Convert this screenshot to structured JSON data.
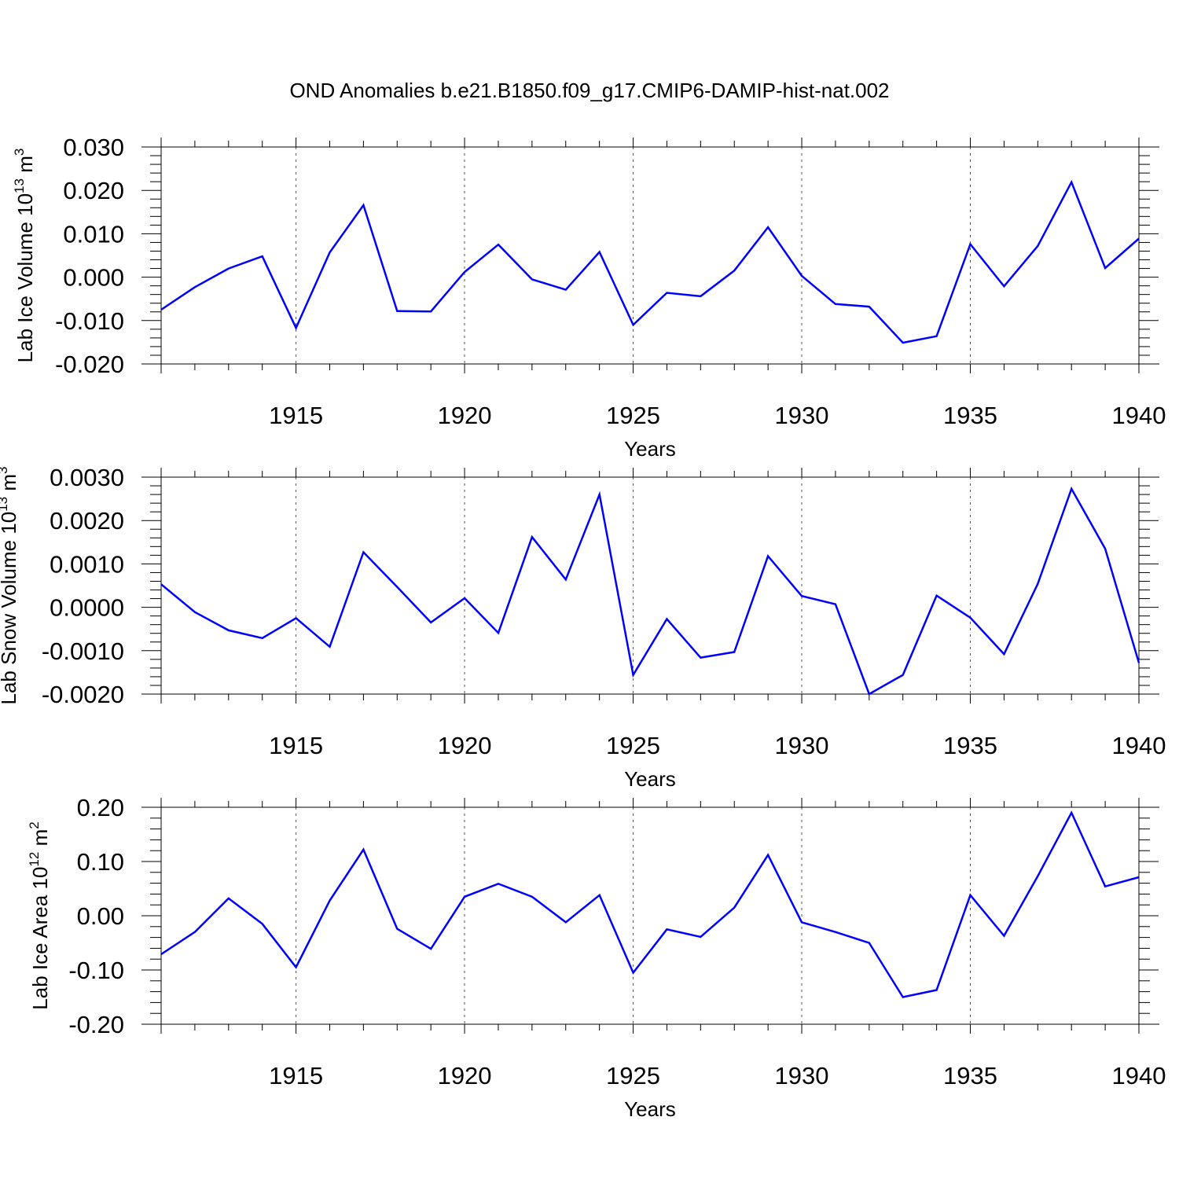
{
  "title": "OND Anomalies b.e21.B1850.f09_g17.CMIP6-DAMIP-hist-nat.002",
  "line_color": "#0000ff",
  "chart_data": [
    {
      "type": "line",
      "ylabel_main": "Lab Ice Volume 10",
      "ylabel_exp": "13",
      "ylabel_unit": "m",
      "ylabel_unit_exp": "3",
      "xlabel": "Years",
      "xlim": [
        1911,
        1940
      ],
      "ylim": [
        -0.02,
        0.03
      ],
      "xticks": [
        "1915",
        "1920",
        "1925",
        "1930",
        "1935",
        "1940"
      ],
      "yticks": [
        "0.030",
        "0.020",
        "0.010",
        "0.000",
        "-0.010",
        "-0.020"
      ],
      "x": [
        1911,
        1912,
        1913,
        1914,
        1915,
        1916,
        1917,
        1918,
        1919,
        1920,
        1921,
        1922,
        1923,
        1924,
        1925,
        1926,
        1927,
        1928,
        1929,
        1930,
        1931,
        1932,
        1933,
        1934,
        1935,
        1936,
        1937,
        1938,
        1939,
        1940
      ],
      "values": [
        -0.0075,
        -0.0023,
        0.002,
        0.0048,
        -0.0117,
        0.0057,
        0.0166,
        -0.0078,
        -0.0079,
        0.0012,
        0.0075,
        -0.0005,
        -0.0029,
        0.0058,
        -0.011,
        -0.0036,
        -0.0044,
        0.0015,
        0.0115,
        0.0003,
        -0.0062,
        -0.0068,
        -0.0151,
        -0.0136,
        0.0076,
        -0.0021,
        0.0072,
        0.0219,
        0.0021,
        0.0089
      ]
    },
    {
      "type": "line",
      "ylabel_main": "Lab Snow Volume 10",
      "ylabel_exp": "13",
      "ylabel_unit": "m",
      "ylabel_unit_exp": "3",
      "xlabel": "Years",
      "xlim": [
        1911,
        1940
      ],
      "ylim": [
        -0.002,
        0.003
      ],
      "xticks": [
        "1915",
        "1920",
        "1925",
        "1930",
        "1935",
        "1940"
      ],
      "yticks": [
        "0.0030",
        "0.0020",
        "0.0010",
        "0.0000",
        "-0.0010",
        "-0.0020"
      ],
      "x": [
        1911,
        1912,
        1913,
        1914,
        1915,
        1916,
        1917,
        1918,
        1919,
        1920,
        1921,
        1922,
        1923,
        1924,
        1925,
        1926,
        1927,
        1928,
        1929,
        1930,
        1931,
        1932,
        1933,
        1934,
        1935,
        1936,
        1937,
        1938,
        1939,
        1940
      ],
      "values": [
        0.00053,
        -0.00011,
        -0.00053,
        -0.00071,
        -0.00025,
        -0.00091,
        0.00127,
        0.00047,
        -0.00035,
        0.00021,
        -0.00059,
        0.00162,
        0.00064,
        0.0026,
        -0.00156,
        -0.00027,
        -0.00116,
        -0.00103,
        0.00118,
        0.00026,
        7e-05,
        -0.002,
        -0.00156,
        0.00027,
        -0.00024,
        -0.00108,
        0.00054,
        0.00273,
        0.00135,
        -0.00128
      ]
    },
    {
      "type": "line",
      "ylabel_main": "Lab Ice Area 10",
      "ylabel_exp": "12",
      "ylabel_unit": "m",
      "ylabel_unit_exp": "2",
      "xlabel": "Years",
      "xlim": [
        1911,
        1940
      ],
      "ylim": [
        -0.2,
        0.2
      ],
      "xticks": [
        "1915",
        "1920",
        "1925",
        "1930",
        "1935",
        "1940"
      ],
      "yticks": [
        "0.20",
        "0.10",
        "0.00",
        "-0.10",
        "-0.20"
      ],
      "x": [
        1911,
        1912,
        1913,
        1914,
        1915,
        1916,
        1917,
        1918,
        1919,
        1920,
        1921,
        1922,
        1923,
        1924,
        1925,
        1926,
        1927,
        1928,
        1929,
        1930,
        1931,
        1932,
        1933,
        1934,
        1935,
        1936,
        1937,
        1938,
        1939,
        1940
      ],
      "values": [
        -0.071,
        -0.03,
        0.032,
        -0.015,
        -0.095,
        0.028,
        0.122,
        -0.024,
        -0.061,
        0.035,
        0.059,
        0.035,
        -0.012,
        0.038,
        -0.105,
        -0.025,
        -0.039,
        0.015,
        0.112,
        -0.012,
        -0.03,
        -0.05,
        -0.15,
        -0.137,
        0.038,
        -0.037,
        0.073,
        0.19,
        0.054,
        0.071
      ]
    }
  ]
}
